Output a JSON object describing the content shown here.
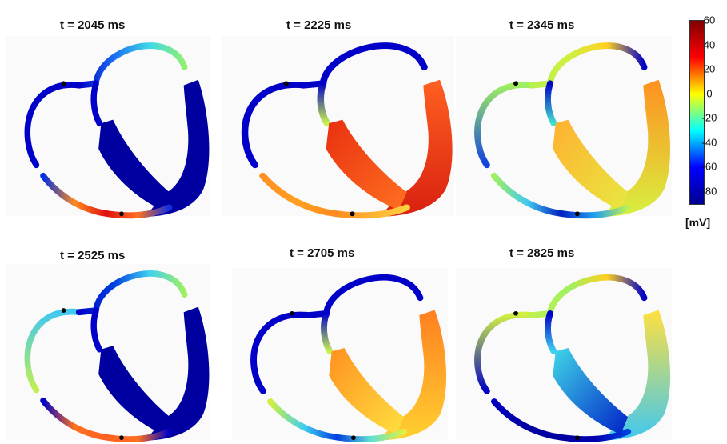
{
  "panels": [
    {
      "title": "t = 2045 ms",
      "colors": {
        "ra": [
          "#0000c8",
          "#0000c8"
        ],
        "top": [
          "#0000c8",
          "#1a6ff0",
          "#40d8e8",
          "#90f070"
        ],
        "lv": [
          "#0000a0",
          "#0000a0"
        ],
        "sep": [
          "#0000a0",
          "#0000a0"
        ],
        "la": [
          "#0000c8",
          "#0000c8"
        ],
        "bot": [
          "#0030e0",
          "#ff8a20",
          "#e01010",
          "#ff7020",
          "#1030e0"
        ]
      }
    },
    {
      "title": "t = 2225 ms",
      "colors": {
        "ra": [
          "#0000c8",
          "#0000c8"
        ],
        "top": [
          "#0000c8",
          "#0000c8",
          "#0000c8",
          "#0000c8"
        ],
        "lv": [
          "#ff6020",
          "#d82010"
        ],
        "sep": [
          "#e83010",
          "#ff7020"
        ],
        "la": [
          "#0000c8",
          "#c8f050"
        ],
        "bot": [
          "#ff9020",
          "#ffa020",
          "#ff8a20",
          "#ffb030",
          "#ffd040"
        ]
      }
    },
    {
      "title": "t = 2345 ms",
      "colors": {
        "ra": [
          "#a0f060",
          "#1040e0"
        ],
        "top": [
          "#b8f050",
          "#d0f040",
          "#ffd020",
          "#0000c8"
        ],
        "lv": [
          "#ff9020",
          "#d8f040"
        ],
        "sep": [
          "#ffb030",
          "#e8e840"
        ],
        "la": [
          "#0000c8",
          "#40e0d0"
        ],
        "bot": [
          "#a0f060",
          "#40c8f0",
          "#0020c0",
          "#20a0f0",
          "#c0f050"
        ]
      }
    },
    {
      "title": "t = 2525 ms",
      "colors": {
        "ra": [
          "#40c8f0",
          "#c0f050"
        ],
        "top": [
          "#0000c8",
          "#0040e0",
          "#40d0f0",
          "#a0f060"
        ],
        "lv": [
          "#0000a0",
          "#0000a0"
        ],
        "sep": [
          "#0000a0",
          "#0000a0"
        ],
        "la": [
          "#0000c8",
          "#0000c8"
        ],
        "bot": [
          "#0000c8",
          "#ff7020",
          "#ff6020",
          "#ff7020",
          "#0000c8"
        ]
      }
    },
    {
      "title": "t = 2705 ms",
      "colors": {
        "ra": [
          "#0000c8",
          "#0000c8"
        ],
        "top": [
          "#0000c8",
          "#0000c8",
          "#0000c8",
          "#0000c8"
        ],
        "lv": [
          "#ff8020",
          "#ffd030"
        ],
        "sep": [
          "#ff9020",
          "#ffe040"
        ],
        "la": [
          "#0000c8",
          "#c8f050"
        ],
        "bot": [
          "#d0f040",
          "#40d0f0",
          "#0040e0",
          "#60e0d0",
          "#e0f040"
        ]
      }
    },
    {
      "title": "t = 2825 ms",
      "colors": {
        "ra": [
          "#d0f040",
          "#0000c8"
        ],
        "top": [
          "#c0f050",
          "#a0f060",
          "#ffd020",
          "#0000c8"
        ],
        "lv": [
          "#ffe040",
          "#40c8f0"
        ],
        "sep": [
          "#40d8e8",
          "#0020c8"
        ],
        "la": [
          "#0000c8",
          "#40d0f0"
        ],
        "bot": [
          "#0000c0",
          "#0000a0",
          "#0000a0",
          "#0000b0",
          "#0040e0"
        ]
      }
    }
  ],
  "colorbar": {
    "ticks": [
      "60",
      "40",
      "20",
      "0",
      "-20",
      "-40",
      "-60",
      "-80"
    ],
    "unit": "[mV]",
    "colors": [
      "#800000",
      "#ff0000",
      "#ffff00",
      "#00ffff",
      "#0000ff",
      "#00008f"
    ]
  }
}
